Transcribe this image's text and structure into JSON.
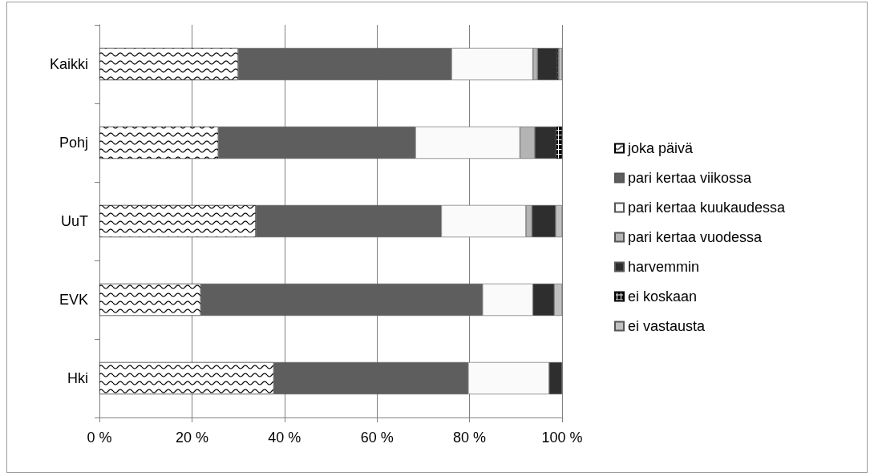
{
  "chart_data": {
    "type": "bar",
    "orientation": "horizontal",
    "stacked": true,
    "categories": [
      "Kaikki",
      "Pohj",
      "UuT",
      "EVK",
      "Hki"
    ],
    "series": [
      {
        "name": "joka päivä",
        "color": "#000000",
        "values": [
          30.0,
          25.7,
          33.8,
          21.9,
          37.7
        ]
      },
      {
        "name": "pari kertaa viikossa",
        "color": "#5e5e5e",
        "values": [
          46.1,
          42.6,
          40.1,
          60.9,
          42.0
        ]
      },
      {
        "name": "pari kertaa kuukaudessa",
        "color": "#fafafa",
        "values": [
          17.6,
          22.6,
          18.3,
          10.9,
          17.5
        ]
      },
      {
        "name": "pari kertaa vuodessa",
        "color": "#b4b4b4",
        "values": [
          1.0,
          3.2,
          1.3,
          0,
          0
        ]
      },
      {
        "name": "harvemmin",
        "color": "#2e2e2e",
        "values": [
          4.3,
          4.6,
          5.1,
          4.6,
          2.8
        ]
      },
      {
        "name": "ei koskaan",
        "color": "#000000",
        "values": [
          0.3,
          1.3,
          0,
          0,
          0
        ]
      },
      {
        "name": "ei vastausta",
        "color": "#c0c0c0",
        "values": [
          0.7,
          0,
          1.4,
          1.7,
          0
        ]
      }
    ],
    "xlim": [
      0,
      100
    ],
    "xticks": [
      {
        "value": 0,
        "label": "0 %"
      },
      {
        "value": 20,
        "label": "20 %"
      },
      {
        "value": 40,
        "label": "40 %"
      },
      {
        "value": 60,
        "label": "60 %"
      },
      {
        "value": 80,
        "label": "80 %"
      },
      {
        "value": 100,
        "label": "100 %"
      }
    ],
    "grid": "x",
    "legend": "right"
  }
}
